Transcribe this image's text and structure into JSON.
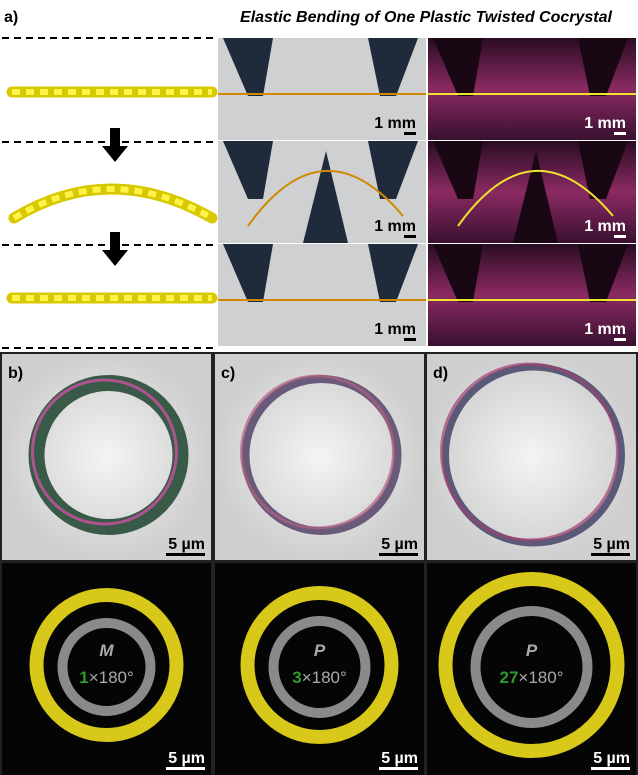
{
  "panel_a": {
    "label": "a)",
    "title": "Elastic Bending of One Plastic Twisted Cocrystal",
    "scale_bars": [
      "1 mm",
      "1 mm",
      "1 mm",
      "1 mm",
      "1 mm",
      "1 mm"
    ]
  },
  "panels": [
    {
      "label": "b)",
      "scale_bar_top": "5 µm",
      "scale_bar_bottom": "5 µm",
      "handedness": "M",
      "twists": 1,
      "twist_unit": "×180°"
    },
    {
      "label": "c)",
      "scale_bar_top": "5 µm",
      "scale_bar_bottom": "5 µm",
      "handedness": "P",
      "twists": 3,
      "twist_unit": "×180°"
    },
    {
      "label": "d)",
      "scale_bar_top": "5 µm",
      "scale_bar_bottom": "5 µm",
      "handedness": "P",
      "twists": 27,
      "twist_unit": "×180°"
    }
  ]
}
